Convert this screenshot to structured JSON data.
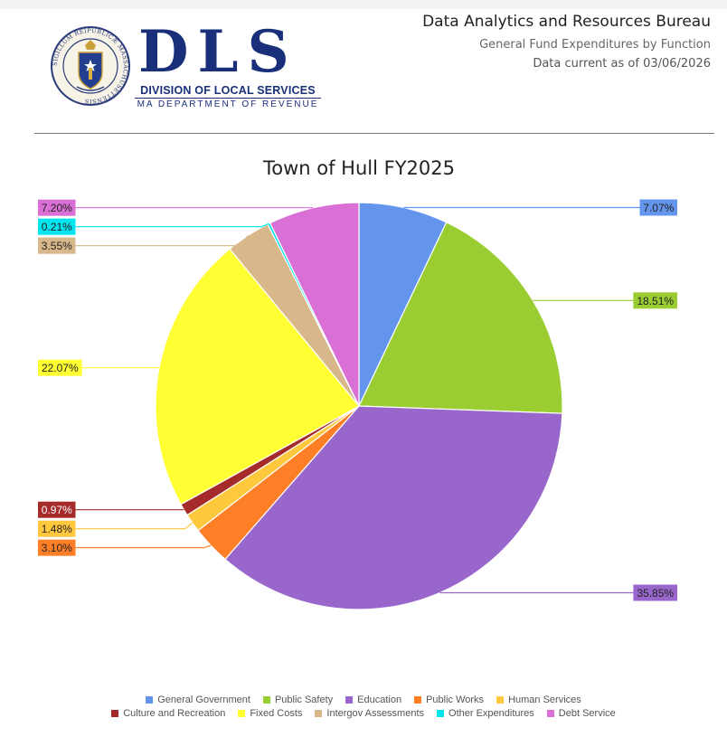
{
  "header": {
    "title": "Data Analytics and Resources Bureau",
    "subtitle": "General Fund Expenditures by Function",
    "data_current": "Data current as of 03/06/2026"
  },
  "logo": {
    "letters": "DLS",
    "line1": "DIVISION OF LOCAL SERVICES",
    "line2": "MA DEPARTMENT OF REVENUE",
    "seal_text": "SIGILLUM REIPUBLICÆ MASSACHUSETTENSIS"
  },
  "chart_data": {
    "type": "pie",
    "title": "Town of Hull FY2025",
    "slices": [
      {
        "name": "General Government",
        "value": 7.07,
        "label": "7.07%",
        "color": "#6495ED",
        "label_side": "right"
      },
      {
        "name": "Public Safety",
        "value": 18.51,
        "label": "18.51%",
        "color": "#9ACD32",
        "label_side": "right"
      },
      {
        "name": "Education",
        "value": 35.85,
        "label": "35.85%",
        "color": "#9966CC",
        "label_side": "right"
      },
      {
        "name": "Public Works",
        "value": 3.1,
        "label": "3.10%",
        "color": "#FF7F27",
        "label_side": "left"
      },
      {
        "name": "Human Services",
        "value": 1.48,
        "label": "1.48%",
        "color": "#FFC83D",
        "label_side": "left"
      },
      {
        "name": "Culture and Recreation",
        "value": 0.97,
        "label": "0.97%",
        "color": "#A52A2A",
        "label_side": "left"
      },
      {
        "name": "Fixed Costs",
        "value": 22.07,
        "label": "22.07%",
        "color": "#FFFF33",
        "label_side": "left"
      },
      {
        "name": "Intergov Assessments",
        "value": 3.55,
        "label": "3.55%",
        "color": "#D8B88A",
        "label_side": "left"
      },
      {
        "name": "Other Expenditures",
        "value": 0.21,
        "label": "0.21%",
        "color": "#00E5EE",
        "label_side": "left"
      },
      {
        "name": "Debt Service",
        "value": 7.2,
        "label": "7.20%",
        "color": "#DA70D6",
        "label_side": "left"
      }
    ],
    "legend_position": "bottom"
  }
}
